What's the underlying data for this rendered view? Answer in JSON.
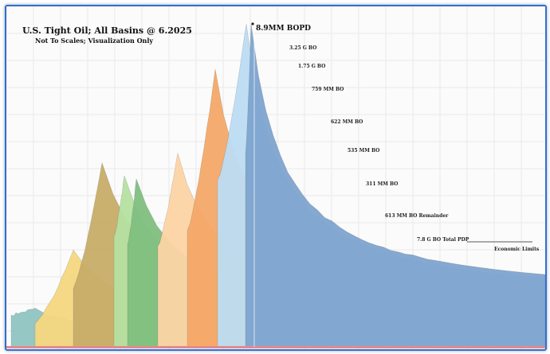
{
  "chart_data": {
    "type": "area",
    "stacked": true,
    "title": "U.S. Tight Oil; All Basins @ 6.2025",
    "subtitle": "Not To Scales; Visualization Only",
    "xlabel": "",
    "ylabel": "",
    "grid": true,
    "legend": "none",
    "peak_label": "8.9MM BOPD",
    "annotations": [
      "3.25 G BO",
      "1.75 G BO",
      "759 MM BO",
      "622 MM BO",
      "535 MM BO",
      "311 MM BO",
      "613 MM BO Remainder",
      "7.8 G BO Total PDP",
      "Economic Limits"
    ],
    "series": [
      {
        "vintage": 1,
        "color": "#8fc4c2",
        "peak_fraction": 0.12
      },
      {
        "vintage": 2,
        "color": "#f6d77f",
        "peak_fraction": 0.3
      },
      {
        "vintage": 3,
        "color": "#c7ad68",
        "peak_fraction": 0.57
      },
      {
        "vintage": 4,
        "color": "#b5e0a0",
        "peak_fraction": 0.53
      },
      {
        "vintage": 5,
        "color": "#7fbf7f",
        "peak_fraction": 0.52
      },
      {
        "vintage": 6,
        "color": "#fcd4a4",
        "peak_fraction": 0.6
      },
      {
        "vintage": 7,
        "color": "#f4a868",
        "peak_fraction": 0.86
      },
      {
        "vintage": 8,
        "color": "#bcdcf2",
        "peak_fraction": 1.0
      },
      {
        "vintage": 9,
        "color": "#7ea4cf",
        "peak_fraction": 1.0
      }
    ]
  }
}
